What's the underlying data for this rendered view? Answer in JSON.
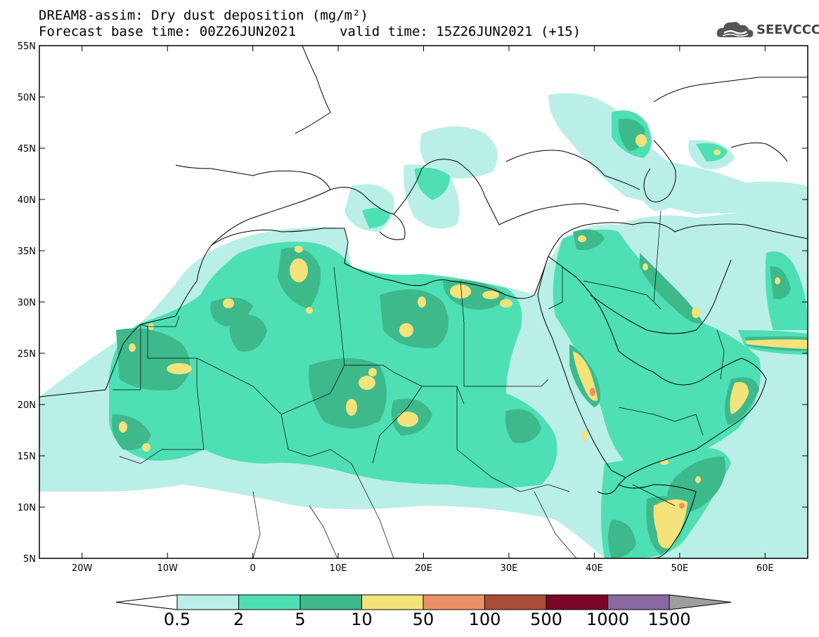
{
  "header": {
    "title_line1": "DREAM8-assim: Dry dust deposition (mg/m²)",
    "title_line2": "Forecast base time: 00Z26JUN2021",
    "valid_time": "valid time: 15Z26JUN2021 (+15)",
    "logo_text": "SEEVCCC",
    "logo_icon": "cloud-icon"
  },
  "map": {
    "lon_range": [
      -25,
      65
    ],
    "lat_range": [
      5,
      55
    ],
    "lat_labels": [
      "55N",
      "50N",
      "45N",
      "40N",
      "35N",
      "30N",
      "25N",
      "20N",
      "15N",
      "10N",
      "5N"
    ],
    "lon_labels": [
      "20W",
      "10W",
      "0",
      "10E",
      "20E",
      "30E",
      "40E",
      "50E",
      "60E"
    ]
  },
  "colorbar": {
    "labels": [
      "0.5",
      "2",
      "5",
      "10",
      "50",
      "100",
      "500",
      "1000",
      "1500"
    ],
    "colors": [
      "#b9efe6",
      "#4fdfb4",
      "#3eb98c",
      "#f3e37a",
      "#ec9166",
      "#ab4c3c",
      "#7a0727",
      "#8a69a2"
    ],
    "under_color": "#ffffff",
    "over_color": "#9e9e9e"
  }
}
